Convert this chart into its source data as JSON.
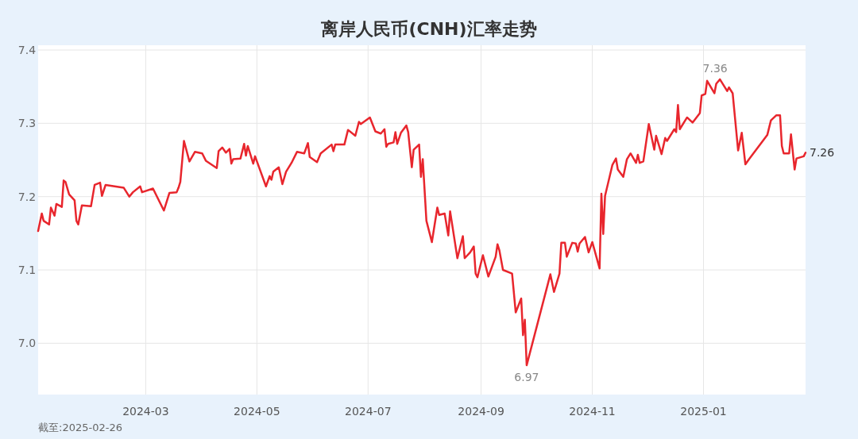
{
  "chart_data": {
    "type": "line",
    "title": "离岸人民币(CNH)汇率走势",
    "xlim": [
      "2024-01-02",
      "2025-02-26"
    ],
    "ylim": [
      6.93,
      7.4
    ],
    "xticks": [
      {
        "value": "2024-03-01",
        "label": "2024-03"
      },
      {
        "value": "2024-05-01",
        "label": "2024-05"
      },
      {
        "value": "2024-07-01",
        "label": "2024-07"
      },
      {
        "value": "2024-09-01",
        "label": "2024-09"
      },
      {
        "value": "2024-11-01",
        "label": "2024-11"
      },
      {
        "value": "2025-01-01",
        "label": "2025-01"
      }
    ],
    "yticks": [
      {
        "value": 7,
        "label": "7.0"
      },
      7.1,
      7.2,
      7.3,
      7.4
    ],
    "grid": true,
    "marker": "none",
    "line_style": "solid",
    "annotations": [
      {
        "text": "7.36",
        "x": "2025-01-10",
        "y": 7.36
      },
      {
        "text": "6.97",
        "x": "2024-09-26",
        "y": 6.97
      },
      {
        "text": "7.26",
        "x": "2025-02-26",
        "y": 7.26
      },
      "截至:2025-02-26"
    ],
    "series": [
      {
        "color": "#e8262d",
        "x": [
          "2024-01-02",
          "2024-01-04",
          "2024-01-05",
          "2024-01-08",
          "2024-01-09",
          "2024-01-11",
          "2024-01-12",
          "2024-01-15",
          "2024-01-16",
          "2024-01-17",
          "2024-01-19",
          "2024-01-22",
          "2024-01-23",
          "2024-01-24",
          "2024-01-26",
          "2024-01-31",
          "2024-02-02",
          "2024-02-05",
          "2024-02-06",
          "2024-02-08",
          "2024-02-18",
          "2024-02-21",
          "2024-02-23",
          "2024-02-27",
          "2024-02-28",
          "2024-03-05",
          "2024-03-07",
          "2024-03-11",
          "2024-03-14",
          "2024-03-18",
          "2024-03-19",
          "2024-03-20",
          "2024-03-22",
          "2024-03-25",
          "2024-03-28",
          "2024-04-01",
          "2024-04-03",
          "2024-04-09",
          "2024-04-10",
          "2024-04-12",
          "2024-04-14",
          "2024-04-16",
          "2024-04-17",
          "2024-04-18",
          "2024-04-22",
          "2024-04-24",
          "2024-04-25",
          "2024-04-26",
          "2024-04-29",
          "2024-04-30",
          "2024-05-06",
          "2024-05-08",
          "2024-05-09",
          "2024-05-10",
          "2024-05-13",
          "2024-05-15",
          "2024-05-17",
          "2024-05-20",
          "2024-05-23",
          "2024-05-27",
          "2024-05-29",
          "2024-05-30",
          "2024-06-03",
          "2024-06-05",
          "2024-06-11",
          "2024-06-12",
          "2024-06-13",
          "2024-06-18",
          "2024-06-20",
          "2024-06-24",
          "2024-06-26",
          "2024-06-27",
          "2024-07-02",
          "2024-07-05",
          "2024-07-08",
          "2024-07-10",
          "2024-07-11",
          "2024-07-12",
          "2024-07-15",
          "2024-07-16",
          "2024-07-17",
          "2024-07-19",
          "2024-07-22",
          "2024-07-23",
          "2024-07-25",
          "2024-07-26",
          "2024-07-29",
          "2024-07-30",
          "2024-07-31",
          "2024-08-02",
          "2024-08-05",
          "2024-08-08",
          "2024-08-09",
          "2024-08-12",
          "2024-08-14",
          "2024-08-15",
          "2024-08-19",
          "2024-08-22",
          "2024-08-23",
          "2024-08-26",
          "2024-08-28",
          "2024-08-29",
          "2024-08-30",
          "2024-09-02",
          "2024-09-05",
          "2024-09-09",
          "2024-09-10",
          "2024-09-11",
          "2024-09-13",
          "2024-09-18",
          "2024-09-20",
          "2024-09-23",
          "2024-09-24",
          "2024-09-25",
          "2024-09-26",
          "2024-10-09",
          "2024-10-11",
          "2024-10-14",
          "2024-10-15",
          "2024-10-17",
          "2024-10-18",
          "2024-10-21",
          "2024-10-23",
          "2024-10-24",
          "2024-10-25",
          "2024-10-28",
          "2024-10-30",
          "2024-11-01",
          "2024-11-05",
          "2024-11-06",
          "2024-11-07",
          "2024-11-08",
          "2024-11-12",
          "2024-11-14",
          "2024-11-15",
          "2024-11-18",
          "2024-11-20",
          "2024-11-22",
          "2024-11-25",
          "2024-11-26",
          "2024-11-27",
          "2024-11-29",
          "2024-12-02",
          "2024-12-05",
          "2024-12-06",
          "2024-12-09",
          "2024-12-11",
          "2024-12-12",
          "2024-12-16",
          "2024-12-17",
          "2024-12-18",
          "2024-12-19",
          "2024-12-23",
          "2024-12-26",
          "2024-12-30",
          "2024-12-31",
          "2025-01-02",
          "2025-01-03",
          "2025-01-07",
          "2025-01-08",
          "2025-01-10",
          "2025-01-14",
          "2025-01-15",
          "2025-01-17",
          "2025-01-20",
          "2025-01-22",
          "2025-01-24",
          "2025-01-26",
          "2025-02-05",
          "2025-02-07",
          "2025-02-10",
          "2025-02-12",
          "2025-02-13",
          "2025-02-14",
          "2025-02-17",
          "2025-02-18",
          "2025-02-20",
          "2025-02-21",
          "2025-02-25",
          "2025-02-26"
        ],
        "values": [
          7.153,
          7.177,
          7.167,
          7.162,
          7.185,
          7.174,
          7.19,
          7.186,
          7.222,
          7.22,
          7.203,
          7.195,
          7.167,
          7.162,
          7.188,
          7.187,
          7.216,
          7.219,
          7.201,
          7.216,
          7.212,
          7.2,
          7.206,
          7.214,
          7.206,
          7.211,
          7.201,
          7.181,
          7.205,
          7.206,
          7.212,
          7.22,
          7.276,
          7.248,
          7.261,
          7.259,
          7.249,
          7.239,
          7.262,
          7.267,
          7.26,
          7.265,
          7.245,
          7.251,
          7.252,
          7.272,
          7.256,
          7.269,
          7.245,
          7.255,
          7.214,
          7.228,
          7.223,
          7.234,
          7.24,
          7.217,
          7.234,
          7.246,
          7.261,
          7.259,
          7.273,
          7.254,
          7.247,
          7.259,
          7.271,
          7.262,
          7.271,
          7.271,
          7.291,
          7.283,
          7.302,
          7.299,
          7.308,
          7.289,
          7.286,
          7.292,
          7.268,
          7.272,
          7.274,
          7.288,
          7.272,
          7.287,
          7.297,
          7.288,
          7.24,
          7.264,
          7.271,
          7.227,
          7.251,
          7.167,
          7.138,
          7.185,
          7.175,
          7.177,
          7.147,
          7.18,
          7.116,
          7.146,
          7.116,
          7.124,
          7.132,
          7.095,
          7.09,
          7.12,
          7.091,
          7.118,
          7.135,
          7.127,
          7.1,
          7.095,
          7.042,
          7.061,
          7.011,
          7.032,
          6.97,
          7.094,
          7.07,
          7.095,
          7.137,
          7.137,
          7.118,
          7.137,
          7.136,
          7.125,
          7.136,
          7.145,
          7.124,
          7.138,
          7.102,
          7.204,
          7.149,
          7.201,
          7.243,
          7.252,
          7.237,
          7.227,
          7.251,
          7.259,
          7.246,
          7.257,
          7.246,
          7.248,
          7.299,
          7.264,
          7.283,
          7.258,
          7.28,
          7.276,
          7.292,
          7.288,
          7.325,
          7.292,
          7.308,
          7.301,
          7.314,
          7.338,
          7.34,
          7.358,
          7.341,
          7.354,
          7.36,
          7.344,
          7.349,
          7.341,
          7.263,
          7.287,
          7.244,
          7.251,
          7.284,
          7.304,
          7.311,
          7.311,
          7.269,
          7.259,
          7.259,
          7.285,
          7.237,
          7.252,
          7.255,
          7.26
        ]
      }
    ]
  }
}
